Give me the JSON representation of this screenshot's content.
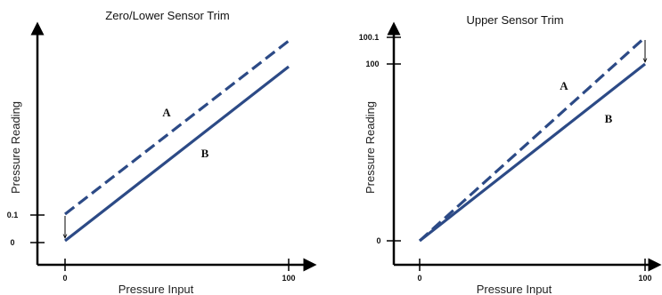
{
  "colors": {
    "line": "#2c4a86",
    "axis": "#000000"
  },
  "panels": [
    {
      "title": "Zero/Lower Sensor Trim",
      "x_axis_label": "Pressure Input",
      "y_axis_label": "Pressure Reading",
      "x_ticks": [
        "0",
        "100"
      ],
      "y_ticks": [
        "0",
        "0.1"
      ],
      "line_a_label": "A",
      "line_b_label": "B"
    },
    {
      "title": "Upper Sensor Trim",
      "x_axis_label": "Pressure Input",
      "y_axis_label": "Pressure Reading",
      "x_ticks": [
        "0",
        "100"
      ],
      "y_ticks": [
        "0",
        "100",
        "100.1"
      ],
      "line_a_label": "A",
      "line_b_label": "B"
    }
  ]
}
